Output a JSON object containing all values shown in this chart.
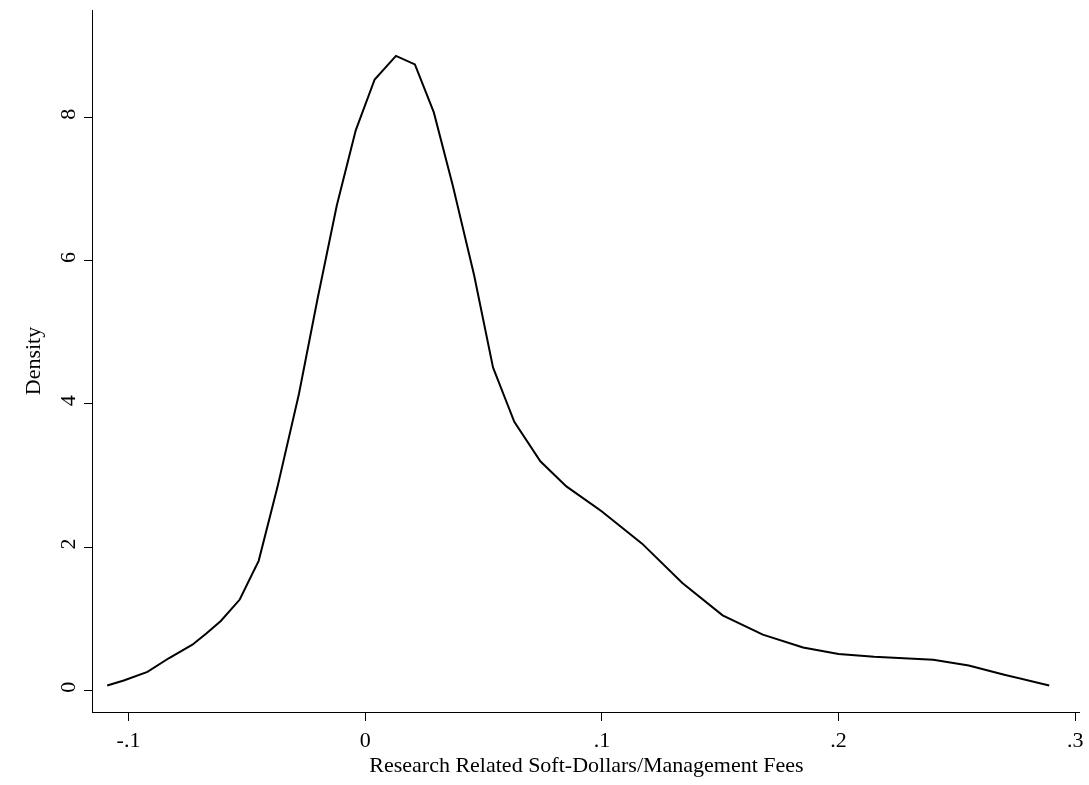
{
  "chart_data": {
    "type": "line",
    "xlabel": "Research Related Soft-Dollars/Management Fees",
    "ylabel": "Density",
    "x": [
      -0.109,
      -0.102,
      -0.092,
      -0.083,
      -0.073,
      -0.067,
      -0.061,
      -0.053,
      -0.045,
      -0.037,
      -0.028,
      -0.02,
      -0.012,
      -0.004,
      0.004,
      0.013,
      0.021,
      0.029,
      0.037,
      0.046,
      0.054,
      0.063,
      0.074,
      0.085,
      0.1,
      0.117,
      0.134,
      0.151,
      0.168,
      0.185,
      0.2,
      0.215,
      0.24,
      0.255,
      0.27,
      0.289
    ],
    "series": [
      {
        "color": "#000000",
        "values": [
          0.07,
          0.14,
          0.26,
          0.45,
          0.64,
          0.8,
          0.97,
          1.27,
          1.81,
          2.85,
          4.14,
          5.49,
          6.77,
          7.82,
          8.53,
          8.86,
          8.74,
          8.07,
          7.05,
          5.8,
          4.51,
          3.75,
          3.2,
          2.85,
          2.5,
          2.05,
          1.5,
          1.05,
          0.78,
          0.6,
          0.51,
          0.47,
          0.43,
          0.35,
          0.22,
          0.07
        ]
      }
    ],
    "xlim": [
      -0.115,
      0.302
    ],
    "ylim": [
      -0.3,
      9.5
    ],
    "xticks": [
      {
        "value": -0.1,
        "label": "-.1"
      },
      0,
      {
        "value": 0.1,
        "label": ".1"
      },
      {
        "value": 0.2,
        "label": ".2"
      },
      {
        "value": 0.3,
        "label": ".3"
      }
    ],
    "yticks": [
      0,
      2,
      4,
      6,
      8
    ],
    "grid": false,
    "marker": "none",
    "line_style": "solid"
  }
}
